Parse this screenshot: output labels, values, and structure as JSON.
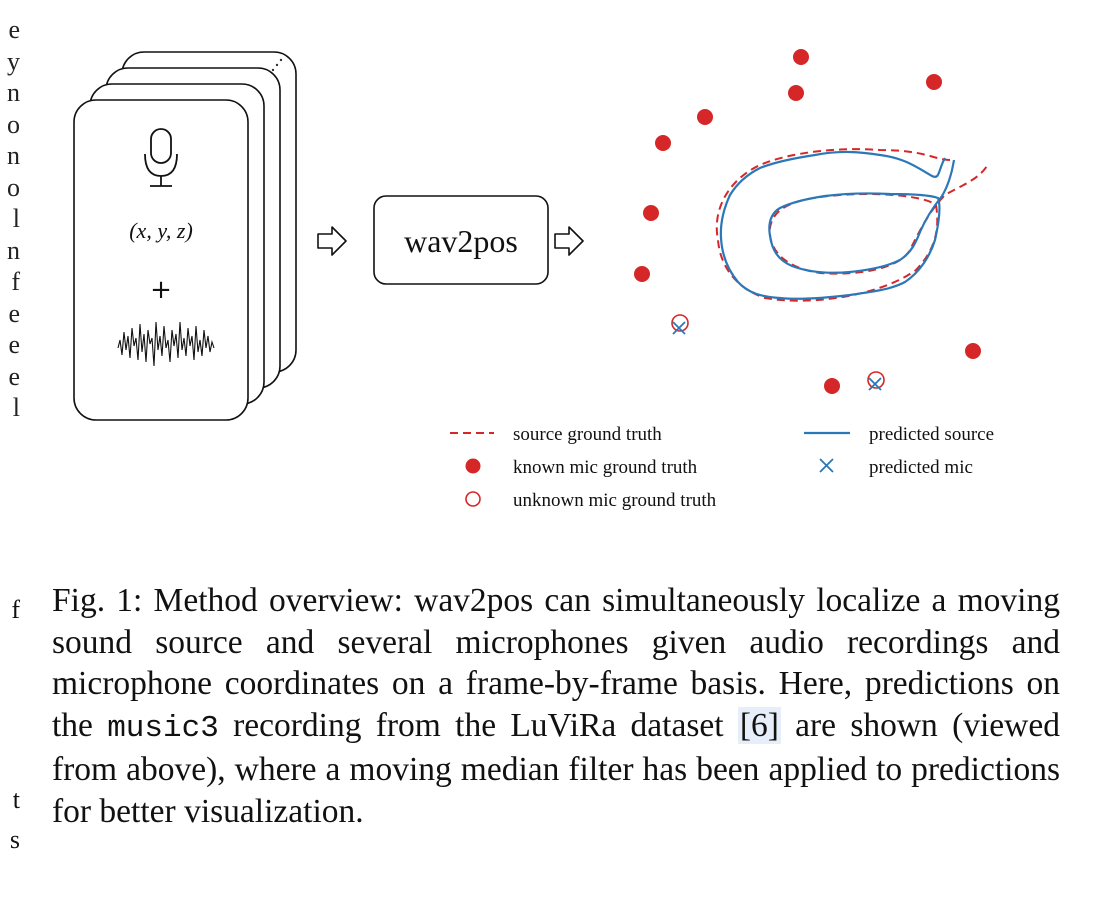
{
  "margin_glyphs": [
    "e",
    "y",
    "n",
    "o",
    "n",
    "o",
    "l",
    "n",
    "f",
    "e",
    "e",
    "e",
    "l"
  ],
  "margin_glyphs_lower": [
    "f",
    "t",
    "s"
  ],
  "card": {
    "coords_label": "(x, y, z)",
    "plus_label": "+"
  },
  "model_box": {
    "label": "wav2pos"
  },
  "legend": {
    "source_gt": "source ground truth",
    "predicted_source": "predicted source",
    "known_mic": "known mic ground truth",
    "predicted_mic": "predicted mic",
    "unknown_mic": "unknown mic ground truth"
  },
  "colors": {
    "ground_truth": "#d62728",
    "prediction": "#2a78b8"
  },
  "caption": {
    "part1": "Fig. 1: Method overview: wav2pos can simultaneously localize a moving sound source and several microphones given audio recordings and microphone coordinates on a frame-by-frame basis. Here, predictions on the ",
    "mono": "music3",
    "part2": " recording from the LuViRa dataset ",
    "cite": "[6]",
    "part3": " are shown (viewed from above), where a moving median filter has been applied to predictions for better visualization."
  }
}
